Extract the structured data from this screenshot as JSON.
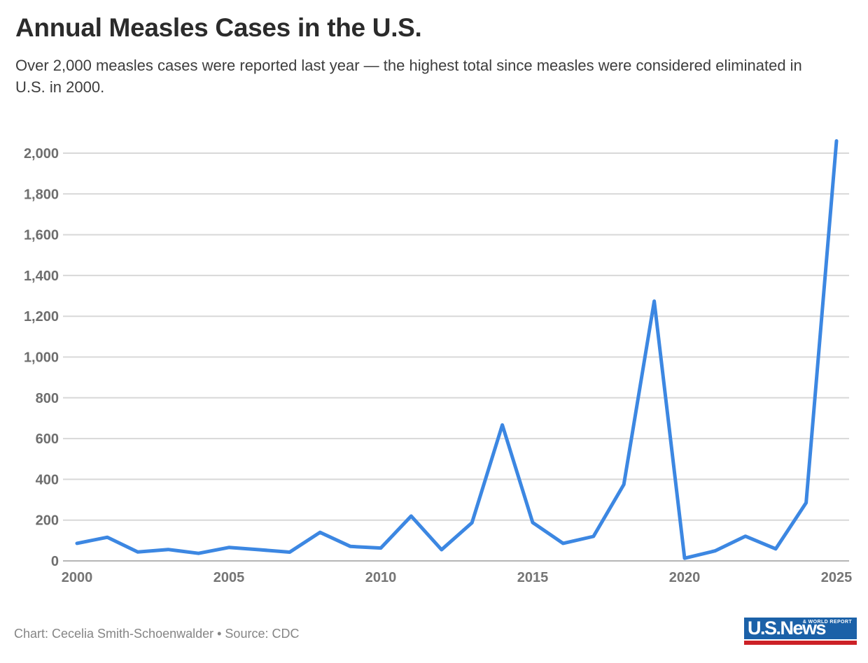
{
  "header": {
    "title": "Annual Measles Cases in the U.S.",
    "subtitle": "Over 2,000 measles cases were reported last year — the highest total since measles were considered eliminated in U.S. in 2000."
  },
  "chart_data": {
    "type": "line",
    "title": "Annual Measles Cases in the U.S.",
    "series_name": "Annual measles cases",
    "x": [
      2000,
      2001,
      2002,
      2003,
      2004,
      2005,
      2006,
      2007,
      2008,
      2009,
      2010,
      2011,
      2012,
      2013,
      2014,
      2015,
      2016,
      2017,
      2018,
      2019,
      2020,
      2021,
      2022,
      2023,
      2024,
      2025
    ],
    "values": [
      86,
      116,
      44,
      56,
      37,
      66,
      55,
      43,
      140,
      71,
      63,
      220,
      55,
      187,
      667,
      188,
      86,
      120,
      375,
      1274,
      13,
      49,
      121,
      59,
      285,
      2060
    ],
    "xlabel": "",
    "ylabel": "",
    "ylim": [
      0,
      2000
    ],
    "ytick_step": 200,
    "xticks": [
      2000,
      2005,
      2010,
      2015,
      2020,
      2025
    ],
    "grid": true,
    "legend": "none",
    "colors": {
      "line": "#3c87e2",
      "grid": "#d8d8d8",
      "zero_line": "#b5b5b5",
      "y_label": "#6e6e6e",
      "x_label": "#757575"
    }
  },
  "footer": {
    "credit": "Chart: Cecelia Smith-Schoenwalder • Source: CDC",
    "logo": {
      "primary": "U.S.News",
      "secondary": "& WORLD REPORT",
      "blue": "#1b61a8",
      "red": "#cc2127"
    }
  }
}
